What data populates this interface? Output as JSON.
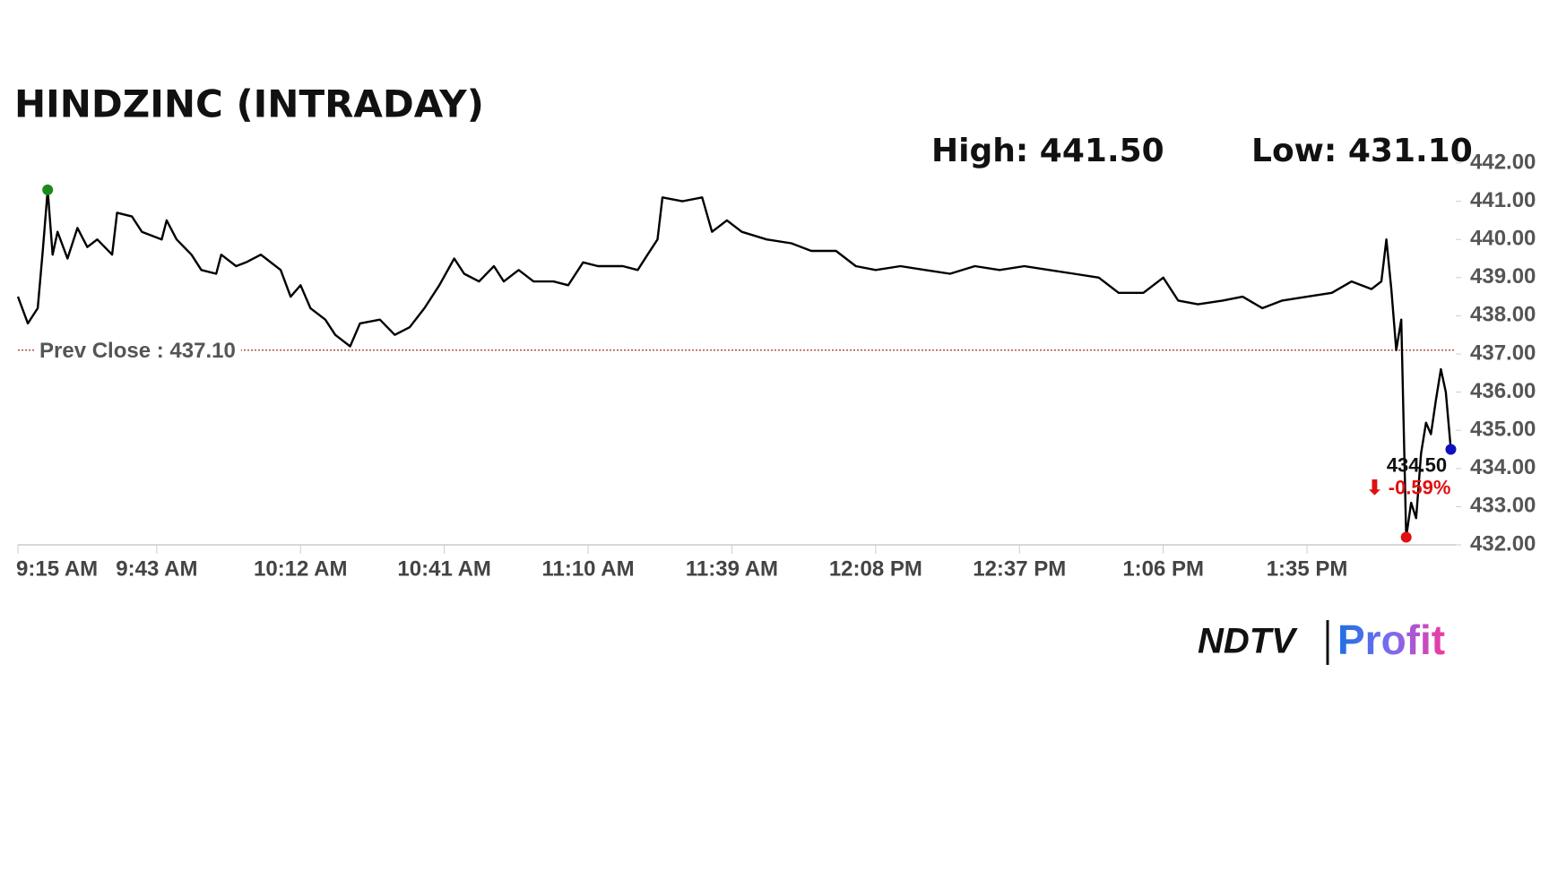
{
  "chart_data": {
    "type": "line",
    "title": "HINDZINC (INTRADAY)",
    "high_label": "High: 441.50",
    "low_label": "Low: 431.10",
    "prev_close": 437.1,
    "prev_close_label": "Prev Close : 437.10",
    "prev_close_color": "#a0302a",
    "last_label": "434.50",
    "change_label": "⬇ -0.59%",
    "change_color": "#e01010",
    "color": "#000000",
    "high_color": "#1a8a1a",
    "low_color": "#e01010",
    "last_color": "#1010c0",
    "x": [
      "9:15 AM",
      "9:17 AM",
      "9:19 AM",
      "9:20 AM",
      "9:21 AM",
      "9:22 AM",
      "9:23 AM",
      "9:25 AM",
      "9:27 AM",
      "9:29 AM",
      "9:31 AM",
      "9:34 AM",
      "9:35 AM",
      "9:38 AM",
      "9:40 AM",
      "9:44 AM",
      "9:45 AM",
      "9:47 AM",
      "9:50 AM",
      "9:52 AM",
      "9:55 AM",
      "9:56 AM",
      "9:59 AM",
      "10:01 AM",
      "10:04 AM",
      "10:05 AM",
      "10:08 AM",
      "10:10 AM",
      "10:12 AM",
      "10:14 AM",
      "10:17 AM",
      "10:19 AM",
      "10:22 AM",
      "10:24 AM",
      "10:28 AM",
      "10:31 AM",
      "10:34 AM",
      "10:37 AM",
      "10:40 AM",
      "10:43 AM",
      "10:45 AM",
      "10:48 AM",
      "10:51 AM",
      "10:53 AM",
      "10:56 AM",
      "10:59 AM",
      "11:03 AM",
      "11:06 AM",
      "11:09 AM",
      "11:12 AM",
      "11:17 AM",
      "11:20 AM",
      "11:22 AM",
      "11:24 AM",
      "11:25 AM",
      "11:29 AM",
      "11:33 AM",
      "11:35 AM",
      "11:38 AM",
      "11:41 AM",
      "11:46 AM",
      "11:51 AM",
      "11:55 AM",
      "12:00 PM",
      "12:04 PM",
      "12:08 PM",
      "12:13 PM",
      "12:18 PM",
      "12:23 PM",
      "12:28 PM",
      "12:33 PM",
      "12:38 PM",
      "12:43 PM",
      "12:48 PM",
      "12:53 PM",
      "12:57 PM",
      "1:02 PM",
      "1:06 PM",
      "1:09 PM",
      "1:13 PM",
      "1:18 PM",
      "1:22 PM",
      "1:26 PM",
      "1:30 PM",
      "1:35 PM",
      "1:40 PM",
      "1:44 PM",
      "1:48 PM",
      "1:50 PM",
      "1:51 PM",
      "1:52 PM",
      "1:53 PM",
      "1:54 PM",
      "1:55 PM",
      "1:56 PM",
      "1:57 PM",
      "1:58 PM",
      "1:59 PM",
      "2:00 PM",
      "2:01 PM",
      "2:02 PM",
      "2:03 PM",
      "2:04 PM"
    ],
    "values": [
      438.5,
      437.8,
      438.2,
      439.7,
      441.3,
      439.6,
      440.2,
      439.5,
      440.3,
      439.8,
      440.0,
      439.6,
      440.7,
      440.6,
      440.2,
      440.0,
      440.5,
      440.0,
      439.6,
      439.2,
      439.1,
      439.6,
      439.3,
      439.4,
      439.6,
      439.5,
      439.2,
      438.5,
      438.8,
      438.2,
      437.9,
      437.5,
      437.2,
      437.8,
      437.9,
      437.5,
      437.7,
      438.2,
      438.8,
      439.5,
      439.1,
      438.9,
      439.3,
      438.9,
      439.2,
      438.9,
      438.9,
      438.8,
      439.4,
      439.3,
      439.3,
      439.2,
      439.6,
      440.0,
      441.1,
      441.0,
      441.1,
      440.2,
      440.5,
      440.2,
      440.0,
      439.9,
      439.7,
      439.7,
      439.3,
      439.2,
      439.3,
      439.2,
      439.1,
      439.3,
      439.2,
      439.3,
      439.2,
      439.1,
      439.0,
      438.6,
      438.6,
      439.0,
      438.4,
      438.3,
      438.4,
      438.5,
      438.2,
      438.4,
      438.5,
      438.6,
      438.9,
      438.7,
      438.9,
      440.0,
      438.7,
      437.1,
      437.9,
      432.2,
      433.1,
      432.7,
      434.4,
      435.2,
      434.9,
      435.8,
      436.6,
      436.0,
      434.5
    ],
    "xlim": [
      "9:15 AM",
      "2:05 PM"
    ],
    "xticks": [
      "9:15 AM",
      "9:43 AM",
      "10:12 AM",
      "10:41 AM",
      "11:10 AM",
      "11:39 AM",
      "12:08 PM",
      "12:37 PM",
      "1:06 PM",
      "1:35 PM"
    ],
    "ylim": [
      432,
      442
    ],
    "yticks": [
      {
        "value": 432,
        "label": "432.00"
      },
      {
        "value": 433,
        "label": "433.00"
      },
      {
        "value": 434,
        "label": "434.00"
      },
      {
        "value": 435,
        "label": "435.00"
      },
      {
        "value": 436,
        "label": "436.00"
      },
      {
        "value": 437,
        "label": "437.00"
      },
      {
        "value": 438,
        "label": "438.00"
      },
      {
        "value": 439,
        "label": "439.00"
      },
      {
        "value": 440,
        "label": "440.00"
      },
      {
        "value": 441,
        "label": "441.00"
      },
      {
        "value": 442,
        "label": "442.00"
      }
    ],
    "logo": {
      "left": "NDTV",
      "right": "Profit"
    }
  }
}
